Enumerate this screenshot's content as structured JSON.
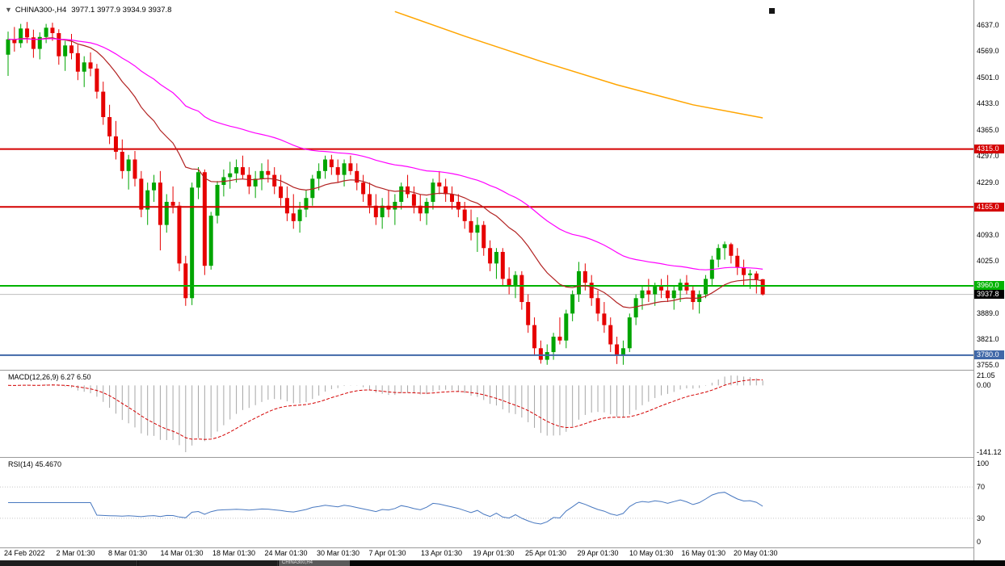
{
  "header": {
    "collapse_icon": "▼",
    "symbol_period": "CHINA300-,H4",
    "ohlc_text": "3977.1 3977.9 3934.9 3937.8"
  },
  "colors": {
    "bull": "#00A500",
    "bear": "#E60000",
    "ma_fast": "#B22222",
    "ma_slow": "#FF00FF",
    "ma_long": "#FFA500",
    "macd_hist": "#A6A6A6",
    "macd_signal": "#D40000",
    "rsi": "#4878C0",
    "current_line": "#BEBEBE",
    "separator": "#9A9A9A",
    "text": "#000000"
  },
  "price_scale": {
    "ticks": [
      {
        "text": "4637.0",
        "price": 4637
      },
      {
        "text": "4569.0",
        "price": 4569
      },
      {
        "text": "4501.0",
        "price": 4501
      },
      {
        "text": "4433.0",
        "price": 4433
      },
      {
        "text": "4365.0",
        "price": 4365
      },
      {
        "text": "4297.0",
        "price": 4297
      },
      {
        "text": "4229.0",
        "price": 4229
      },
      {
        "text": "4093.0",
        "price": 4093
      },
      {
        "text": "4025.0",
        "price": 4025
      },
      {
        "text": "3889.0",
        "price": 3889
      },
      {
        "text": "3821.0",
        "price": 3821
      },
      {
        "text": "3755.0",
        "price": 3755
      }
    ],
    "badges": [
      {
        "text": "4315.0",
        "price": 4315,
        "bg": "#D40000"
      },
      {
        "text": "4165.0",
        "price": 4165,
        "bg": "#D40000"
      },
      {
        "text": "3960.0",
        "price": 3960,
        "bg": "#00B300"
      },
      {
        "text": "3937.8",
        "price": 3937.8,
        "bg": "#000000"
      },
      {
        "text": "3780.0",
        "price": 3780,
        "bg": "#4068A8"
      }
    ]
  },
  "time_axis": {
    "labels": [
      "24 Feb 2022",
      "2 Mar 01:30",
      "8 Mar 01:30",
      "14 Mar 01:30",
      "18 Mar 01:30",
      "24 Mar 01:30",
      "30 Mar 01:30",
      "7 Apr 01:30",
      "13 Apr 01:30",
      "19 Apr 01:30",
      "25 Apr 01:30",
      "29 Apr 01:30",
      "10 May 01:30",
      "16 May 01:30",
      "20 May 01:30"
    ]
  },
  "panes": {
    "macd": {
      "label": "MACD(12,26,9) 6.27 6.50",
      "scale": [
        {
          "text": "21.05",
          "value": 21.05
        },
        {
          "text": "0.00",
          "value": 0
        },
        {
          "text": "-141.12",
          "value": -141.12
        }
      ]
    },
    "rsi": {
      "label": "RSI(14) 45.4670",
      "scale": [
        {
          "text": "100",
          "value": 100
        },
        {
          "text": "70",
          "value": 70
        },
        {
          "text": "30",
          "value": 30
        },
        {
          "text": "0",
          "value": 0
        }
      ],
      "levels": [
        70,
        30
      ]
    }
  },
  "bottom_bar": {
    "active_tab": "CHINA300,H4"
  },
  "chart_data": {
    "type": "candlestick",
    "symbol": "CHINA300-",
    "timeframe": "H4",
    "current": {
      "open": 3977.1,
      "high": 3977.9,
      "low": 3934.9,
      "close": 3937.8
    },
    "current_price": 3937.8,
    "y_axis": {
      "min": 3742,
      "max": 4702
    },
    "hlines": [
      {
        "price": 4315,
        "color": "#D40000",
        "width": 2
      },
      {
        "price": 4165,
        "color": "#D40000",
        "width": 2
      },
      {
        "price": 3960,
        "color": "#00B300",
        "width": 2
      },
      {
        "price": 3780,
        "color": "#4068A8",
        "width": 2
      }
    ],
    "moving_averages": [
      {
        "name": "ma-fast",
        "period": 21,
        "color": "#B22222"
      },
      {
        "name": "ma-slow",
        "period": 55,
        "color": "#FF00FF"
      }
    ],
    "partial_ma": {
      "name": "ma-long",
      "color": "#FFA500",
      "points": [
        [
          61,
          4672
        ],
        [
          72,
          4608
        ],
        [
          84,
          4543
        ],
        [
          96,
          4482
        ],
        [
          108,
          4430
        ],
        [
          119,
          4396
        ]
      ]
    },
    "indicators": {
      "macd": {
        "fast": 12,
        "slow": 26,
        "signal": 9,
        "value": 6.27,
        "signal_value": 6.5,
        "scale_max": 21.05,
        "scale_min": -141.12
      },
      "rsi": {
        "period": 14,
        "value": 45.467
      }
    },
    "candles": [
      [
        4560,
        4620,
        4505,
        4600
      ],
      [
        4600,
        4632,
        4568,
        4590
      ],
      [
        4590,
        4640,
        4578,
        4628
      ],
      [
        4628,
        4645,
        4590,
        4605
      ],
      [
        4605,
        4625,
        4552,
        4575
      ],
      [
        4575,
        4618,
        4548,
        4606
      ],
      [
        4606,
        4640,
        4590,
        4630
      ],
      [
        4630,
        4643,
        4596,
        4616
      ],
      [
        4616,
        4626,
        4534,
        4556
      ],
      [
        4556,
        4596,
        4518,
        4584
      ],
      [
        4584,
        4614,
        4548,
        4564
      ],
      [
        4564,
        4586,
        4494,
        4516
      ],
      [
        4516,
        4556,
        4476,
        4540
      ],
      [
        4540,
        4566,
        4504,
        4524
      ],
      [
        4524,
        4536,
        4446,
        4464
      ],
      [
        4464,
        4490,
        4378,
        4398
      ],
      [
        4398,
        4430,
        4328,
        4348
      ],
      [
        4348,
        4388,
        4288,
        4308
      ],
      [
        4308,
        4340,
        4238,
        4258
      ],
      [
        4258,
        4300,
        4210,
        4288
      ],
      [
        4288,
        4310,
        4218,
        4238
      ],
      [
        4238,
        4258,
        4138,
        4158
      ],
      [
        4158,
        4228,
        4118,
        4208
      ],
      [
        4208,
        4248,
        4178,
        4228
      ],
      [
        4228,
        4258,
        4052,
        4118
      ],
      [
        4118,
        4198,
        4098,
        4178
      ],
      [
        4178,
        4218,
        4148,
        4168
      ],
      [
        4168,
        4178,
        3998,
        4018
      ],
      [
        4018,
        4038,
        3908,
        3928
      ],
      [
        3928,
        4228,
        3910,
        4215
      ],
      [
        4215,
        4268,
        4185,
        4255
      ],
      [
        4255,
        4262,
        3988,
        4012
      ],
      [
        4012,
        4152,
        4002,
        4142
      ],
      [
        4142,
        4232,
        4122,
        4222
      ],
      [
        4222,
        4262,
        4192,
        4242
      ],
      [
        4242,
        4282,
        4212,
        4252
      ],
      [
        4252,
        4288,
        4228,
        4268
      ],
      [
        4268,
        4298,
        4238,
        4248
      ],
      [
        4248,
        4268,
        4198,
        4218
      ],
      [
        4218,
        4258,
        4188,
        4238
      ],
      [
        4238,
        4278,
        4208,
        4258
      ],
      [
        4258,
        4288,
        4228,
        4248
      ],
      [
        4248,
        4268,
        4198,
        4218
      ],
      [
        4218,
        4248,
        4168,
        4188
      ],
      [
        4188,
        4218,
        4128,
        4148
      ],
      [
        4148,
        4198,
        4108,
        4128
      ],
      [
        4128,
        4178,
        4098,
        4158
      ],
      [
        4158,
        4208,
        4138,
        4188
      ],
      [
        4188,
        4248,
        4168,
        4238
      ],
      [
        4238,
        4278,
        4208,
        4258
      ],
      [
        4258,
        4298,
        4238,
        4288
      ],
      [
        4288,
        4300,
        4248,
        4268
      ],
      [
        4268,
        4288,
        4228,
        4248
      ],
      [
        4248,
        4288,
        4218,
        4278
      ],
      [
        4278,
        4298,
        4248,
        4258
      ],
      [
        4258,
        4278,
        4208,
        4228
      ],
      [
        4228,
        4248,
        4178,
        4198
      ],
      [
        4198,
        4228,
        4148,
        4168
      ],
      [
        4168,
        4198,
        4118,
        4138
      ],
      [
        4138,
        4188,
        4108,
        4168
      ],
      [
        4168,
        4208,
        4138,
        4158
      ],
      [
        4158,
        4198,
        4118,
        4178
      ],
      [
        4178,
        4228,
        4158,
        4218
      ],
      [
        4218,
        4248,
        4188,
        4198
      ],
      [
        4198,
        4218,
        4148,
        4168
      ],
      [
        4168,
        4198,
        4128,
        4148
      ],
      [
        4148,
        4188,
        4118,
        4178
      ],
      [
        4178,
        4238,
        4158,
        4228
      ],
      [
        4228,
        4258,
        4198,
        4218
      ],
      [
        4218,
        4238,
        4178,
        4198
      ],
      [
        4198,
        4218,
        4158,
        4178
      ],
      [
        4178,
        4198,
        4138,
        4158
      ],
      [
        4158,
        4178,
        4108,
        4128
      ],
      [
        4128,
        4158,
        4078,
        4098
      ],
      [
        4098,
        4138,
        4048,
        4118
      ],
      [
        4118,
        4128,
        4038,
        4058
      ],
      [
        4058,
        4078,
        3998,
        4018
      ],
      [
        4018,
        4058,
        3978,
        4048
      ],
      [
        4048,
        4058,
        3958,
        3978
      ],
      [
        3978,
        4008,
        3938,
        3958
      ],
      [
        3958,
        3998,
        3928,
        3988
      ],
      [
        3988,
        3998,
        3898,
        3918
      ],
      [
        3918,
        3938,
        3838,
        3858
      ],
      [
        3858,
        3878,
        3778,
        3798
      ],
      [
        3798,
        3818,
        3758,
        3768
      ],
      [
        3768,
        3808,
        3755,
        3788
      ],
      [
        3788,
        3838,
        3768,
        3828
      ],
      [
        3828,
        3878,
        3808,
        3818
      ],
      [
        3818,
        3898,
        3798,
        3888
      ],
      [
        3888,
        3948,
        3868,
        3938
      ],
      [
        3938,
        4022,
        3918,
        3998
      ],
      [
        3998,
        4018,
        3948,
        3968
      ],
      [
        3968,
        3988,
        3908,
        3928
      ],
      [
        3928,
        3948,
        3868,
        3888
      ],
      [
        3888,
        3918,
        3838,
        3858
      ],
      [
        3858,
        3878,
        3788,
        3808
      ],
      [
        3808,
        3828,
        3757,
        3778
      ],
      [
        3778,
        3818,
        3755,
        3798
      ],
      [
        3798,
        3888,
        3788,
        3878
      ],
      [
        3878,
        3938,
        3858,
        3928
      ],
      [
        3928,
        3958,
        3898,
        3948
      ],
      [
        3948,
        3978,
        3918,
        3938
      ],
      [
        3938,
        3968,
        3908,
        3958
      ],
      [
        3958,
        3978,
        3928,
        3948
      ],
      [
        3948,
        3988,
        3918,
        3928
      ],
      [
        3928,
        3958,
        3898,
        3948
      ],
      [
        3948,
        3978,
        3918,
        3968
      ],
      [
        3968,
        3988,
        3938,
        3948
      ],
      [
        3948,
        3958,
        3898,
        3918
      ],
      [
        3918,
        3948,
        3888,
        3938
      ],
      [
        3938,
        3988,
        3928,
        3978
      ],
      [
        3978,
        4038,
        3958,
        4028
      ],
      [
        4028,
        4068,
        4008,
        4058
      ],
      [
        4058,
        4075,
        4028,
        4068
      ],
      [
        4068,
        4072,
        4018,
        4038
      ],
      [
        4038,
        4058,
        3988,
        4008
      ],
      [
        4008,
        4028,
        3958,
        3988
      ],
      [
        3988,
        4002,
        3952,
        3992
      ],
      [
        3992,
        3998,
        3940,
        3977
      ],
      [
        3977.1,
        3977.9,
        3934.9,
        3937.8
      ]
    ]
  }
}
